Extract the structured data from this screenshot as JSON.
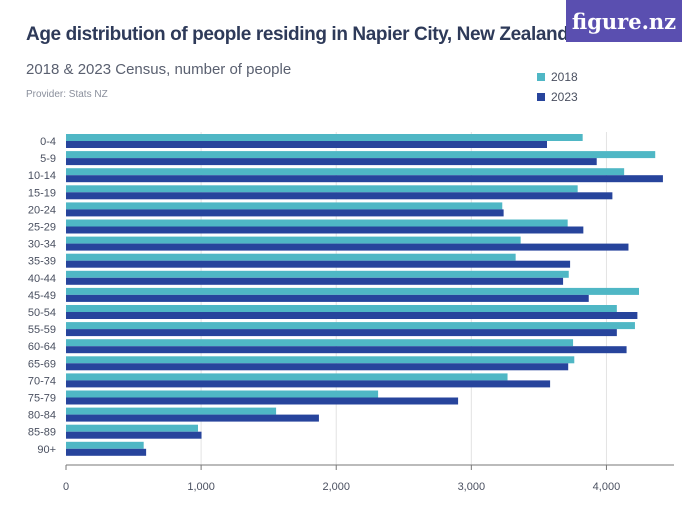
{
  "header": {
    "title": "Age distribution of people residing in Napier City, New Zealand",
    "subtitle": "2018 & 2023 Census, number of people",
    "provider": "Provider: Stats NZ",
    "logo": "figure.nz"
  },
  "chart_data": {
    "type": "bar",
    "orientation": "horizontal",
    "title": "Age distribution of people residing in Napier City, New Zealand",
    "subtitle": "2018 & 2023 Census, number of people",
    "categories": [
      "0-4",
      "5-9",
      "10-14",
      "15-19",
      "20-24",
      "25-29",
      "30-34",
      "35-39",
      "40-44",
      "45-49",
      "50-54",
      "55-59",
      "60-64",
      "65-69",
      "70-74",
      "75-79",
      "80-84",
      "85-89",
      "90+"
    ],
    "series": [
      {
        "name": "2018",
        "color": "#4fb7c5",
        "values": [
          3824,
          4361,
          4131,
          3787,
          3229,
          3713,
          3365,
          3328,
          3721,
          4241,
          4077,
          4211,
          3753,
          3762,
          3268,
          2310,
          1555,
          977,
          575
        ]
      },
      {
        "name": "2023",
        "color": "#27449c",
        "values": [
          3560,
          3928,
          4418,
          4044,
          3239,
          3829,
          4163,
          3731,
          3679,
          3869,
          4229,
          4077,
          4149,
          3717,
          3583,
          2902,
          1872,
          1003,
          593
        ]
      }
    ],
    "xlim": [
      0,
      4500
    ],
    "xticks": [
      0,
      1000,
      2000,
      3000,
      4000
    ],
    "xtick_labels": [
      "0",
      "1,000",
      "2,000",
      "3,000",
      "4,000"
    ],
    "grid": true,
    "legend": "top-right"
  }
}
